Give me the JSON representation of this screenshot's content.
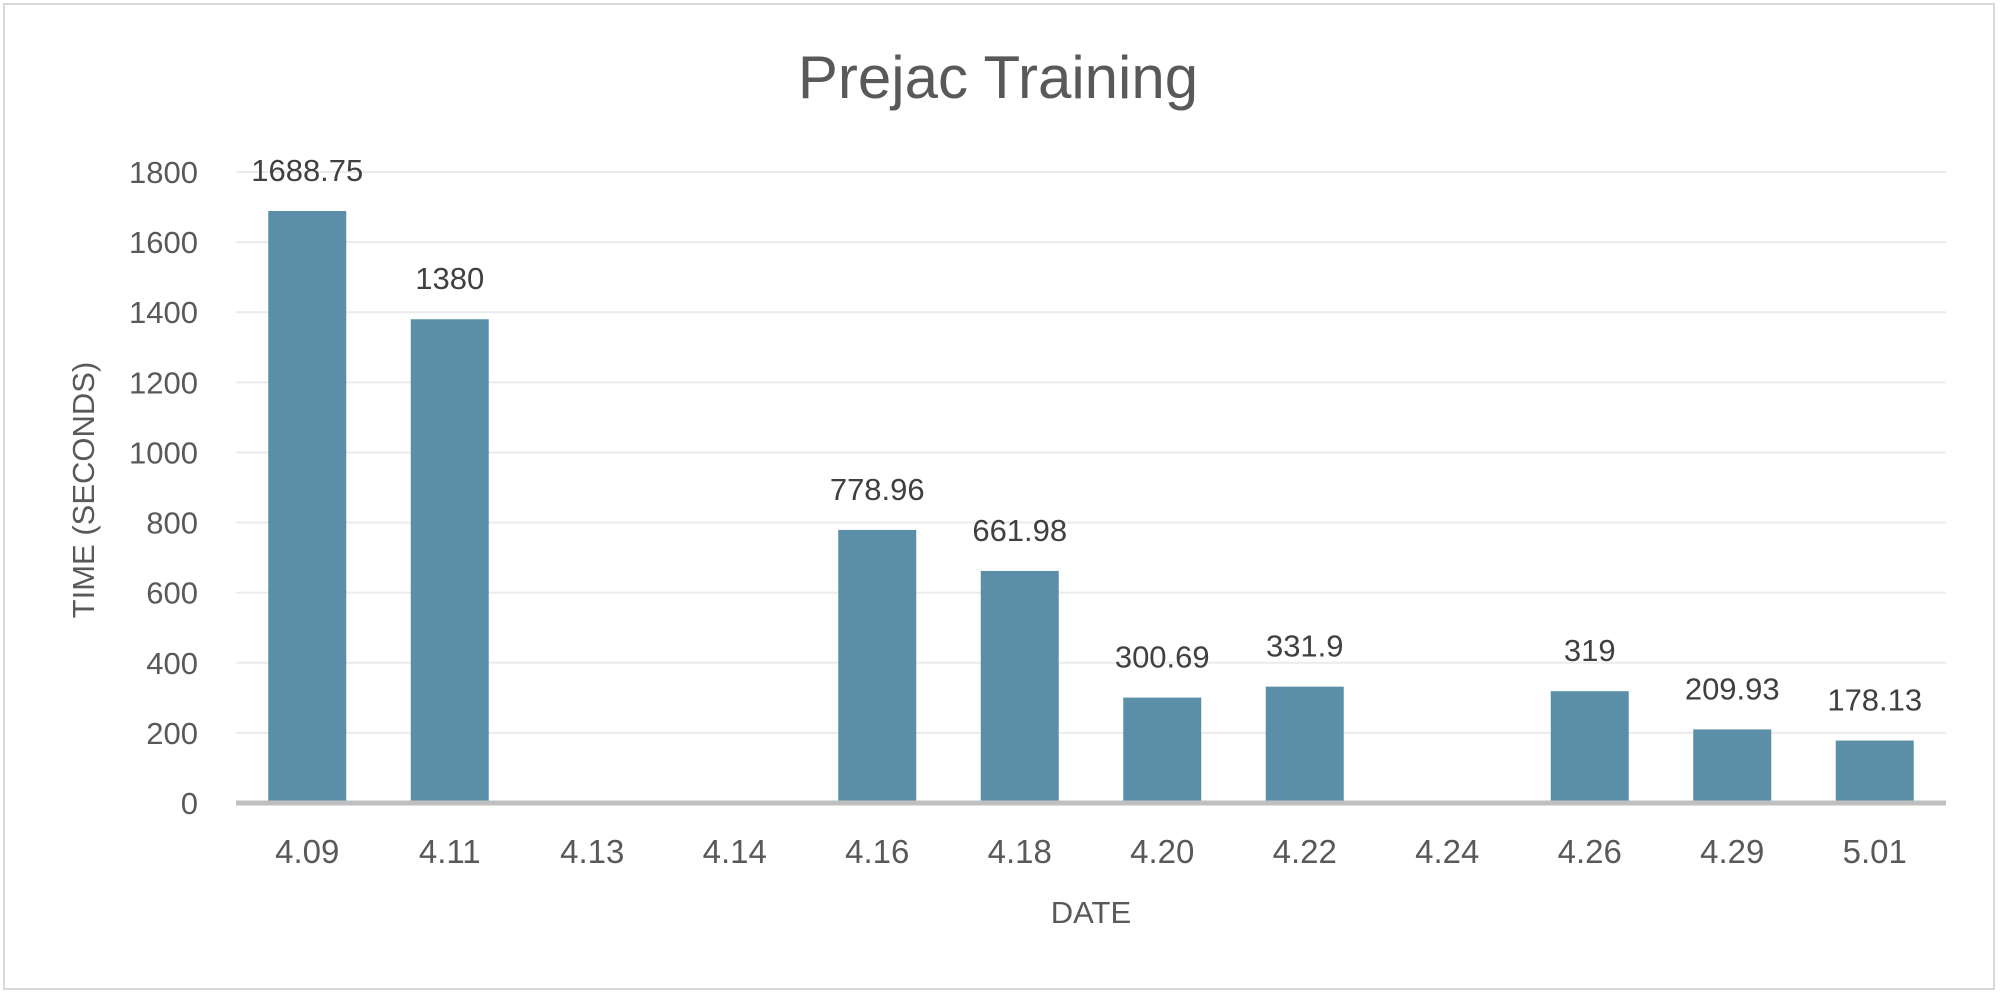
{
  "chart_data": {
    "type": "bar",
    "title": "Prejac Training",
    "xlabel": "DATE",
    "ylabel": "TIME (SECONDS)",
    "ylim": [
      0,
      1800
    ],
    "ytick_step": 200,
    "yticks": [
      "0",
      "200",
      "400",
      "600",
      "800",
      "1000",
      "1200",
      "1400",
      "1600",
      "1800"
    ],
    "grid": true,
    "categories": [
      "4.09",
      "4.11",
      "4.13",
      "4.14",
      "4.16",
      "4.18",
      "4.20",
      "4.22",
      "4.24",
      "4.26",
      "4.29",
      "5.01"
    ],
    "values": [
      1688.75,
      1380,
      null,
      null,
      778.96,
      661.98,
      300.69,
      331.9,
      null,
      319,
      209.93,
      178.13
    ],
    "data_labels": [
      "1688.75",
      "1380",
      "",
      "",
      "778.96",
      "661.98",
      "300.69",
      "331.9",
      "",
      "319",
      "209.93",
      "178.13"
    ],
    "bar_color": "#5b8fa8",
    "legend": "none"
  }
}
